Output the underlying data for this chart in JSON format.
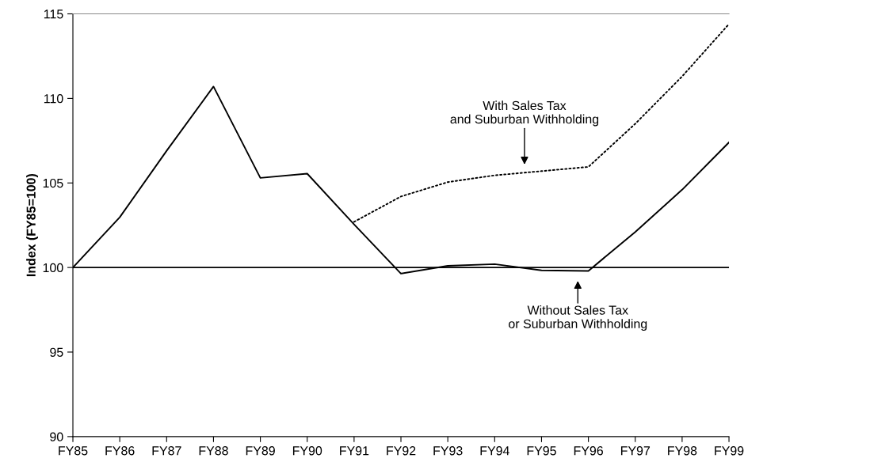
{
  "chart_data": {
    "type": "line",
    "ylabel": "Index (FY85=100)",
    "categories": [
      "FY85",
      "FY86",
      "FY87",
      "FY88",
      "FY89",
      "FY90",
      "FY91",
      "FY92",
      "FY93",
      "FY94",
      "FY95",
      "FY96",
      "FY97",
      "FY98",
      "FY99"
    ],
    "ylim": [
      90,
      115
    ],
    "yticks": [
      90,
      95,
      100,
      105,
      110,
      115
    ],
    "grid": false,
    "legend": false,
    "marker": "none",
    "series": [
      {
        "color": "#000000",
        "line_style": "dotted",
        "values": [
          null,
          null,
          null,
          null,
          null,
          null,
          102.7,
          104.2,
          105.05,
          105.45,
          105.7,
          105.95,
          108.5,
          111.3,
          114.4
        ]
      },
      {
        "color": "#000000",
        "line_style": "solid",
        "values": [
          100,
          102.97,
          106.9,
          110.7,
          105.3,
          105.55,
          102.55,
          99.64,
          100.1,
          100.2,
          99.83,
          99.8,
          102.1,
          104.6,
          107.4
        ]
      }
    ],
    "ref_lines": [
      {
        "axis": "y",
        "value": 100,
        "color": "#000000",
        "line_style": "solid"
      }
    ],
    "annotations": [
      "With Sales Tax\nand Suburban Withholding",
      "Without Sales Tax\nor Suburban Withholding"
    ]
  }
}
